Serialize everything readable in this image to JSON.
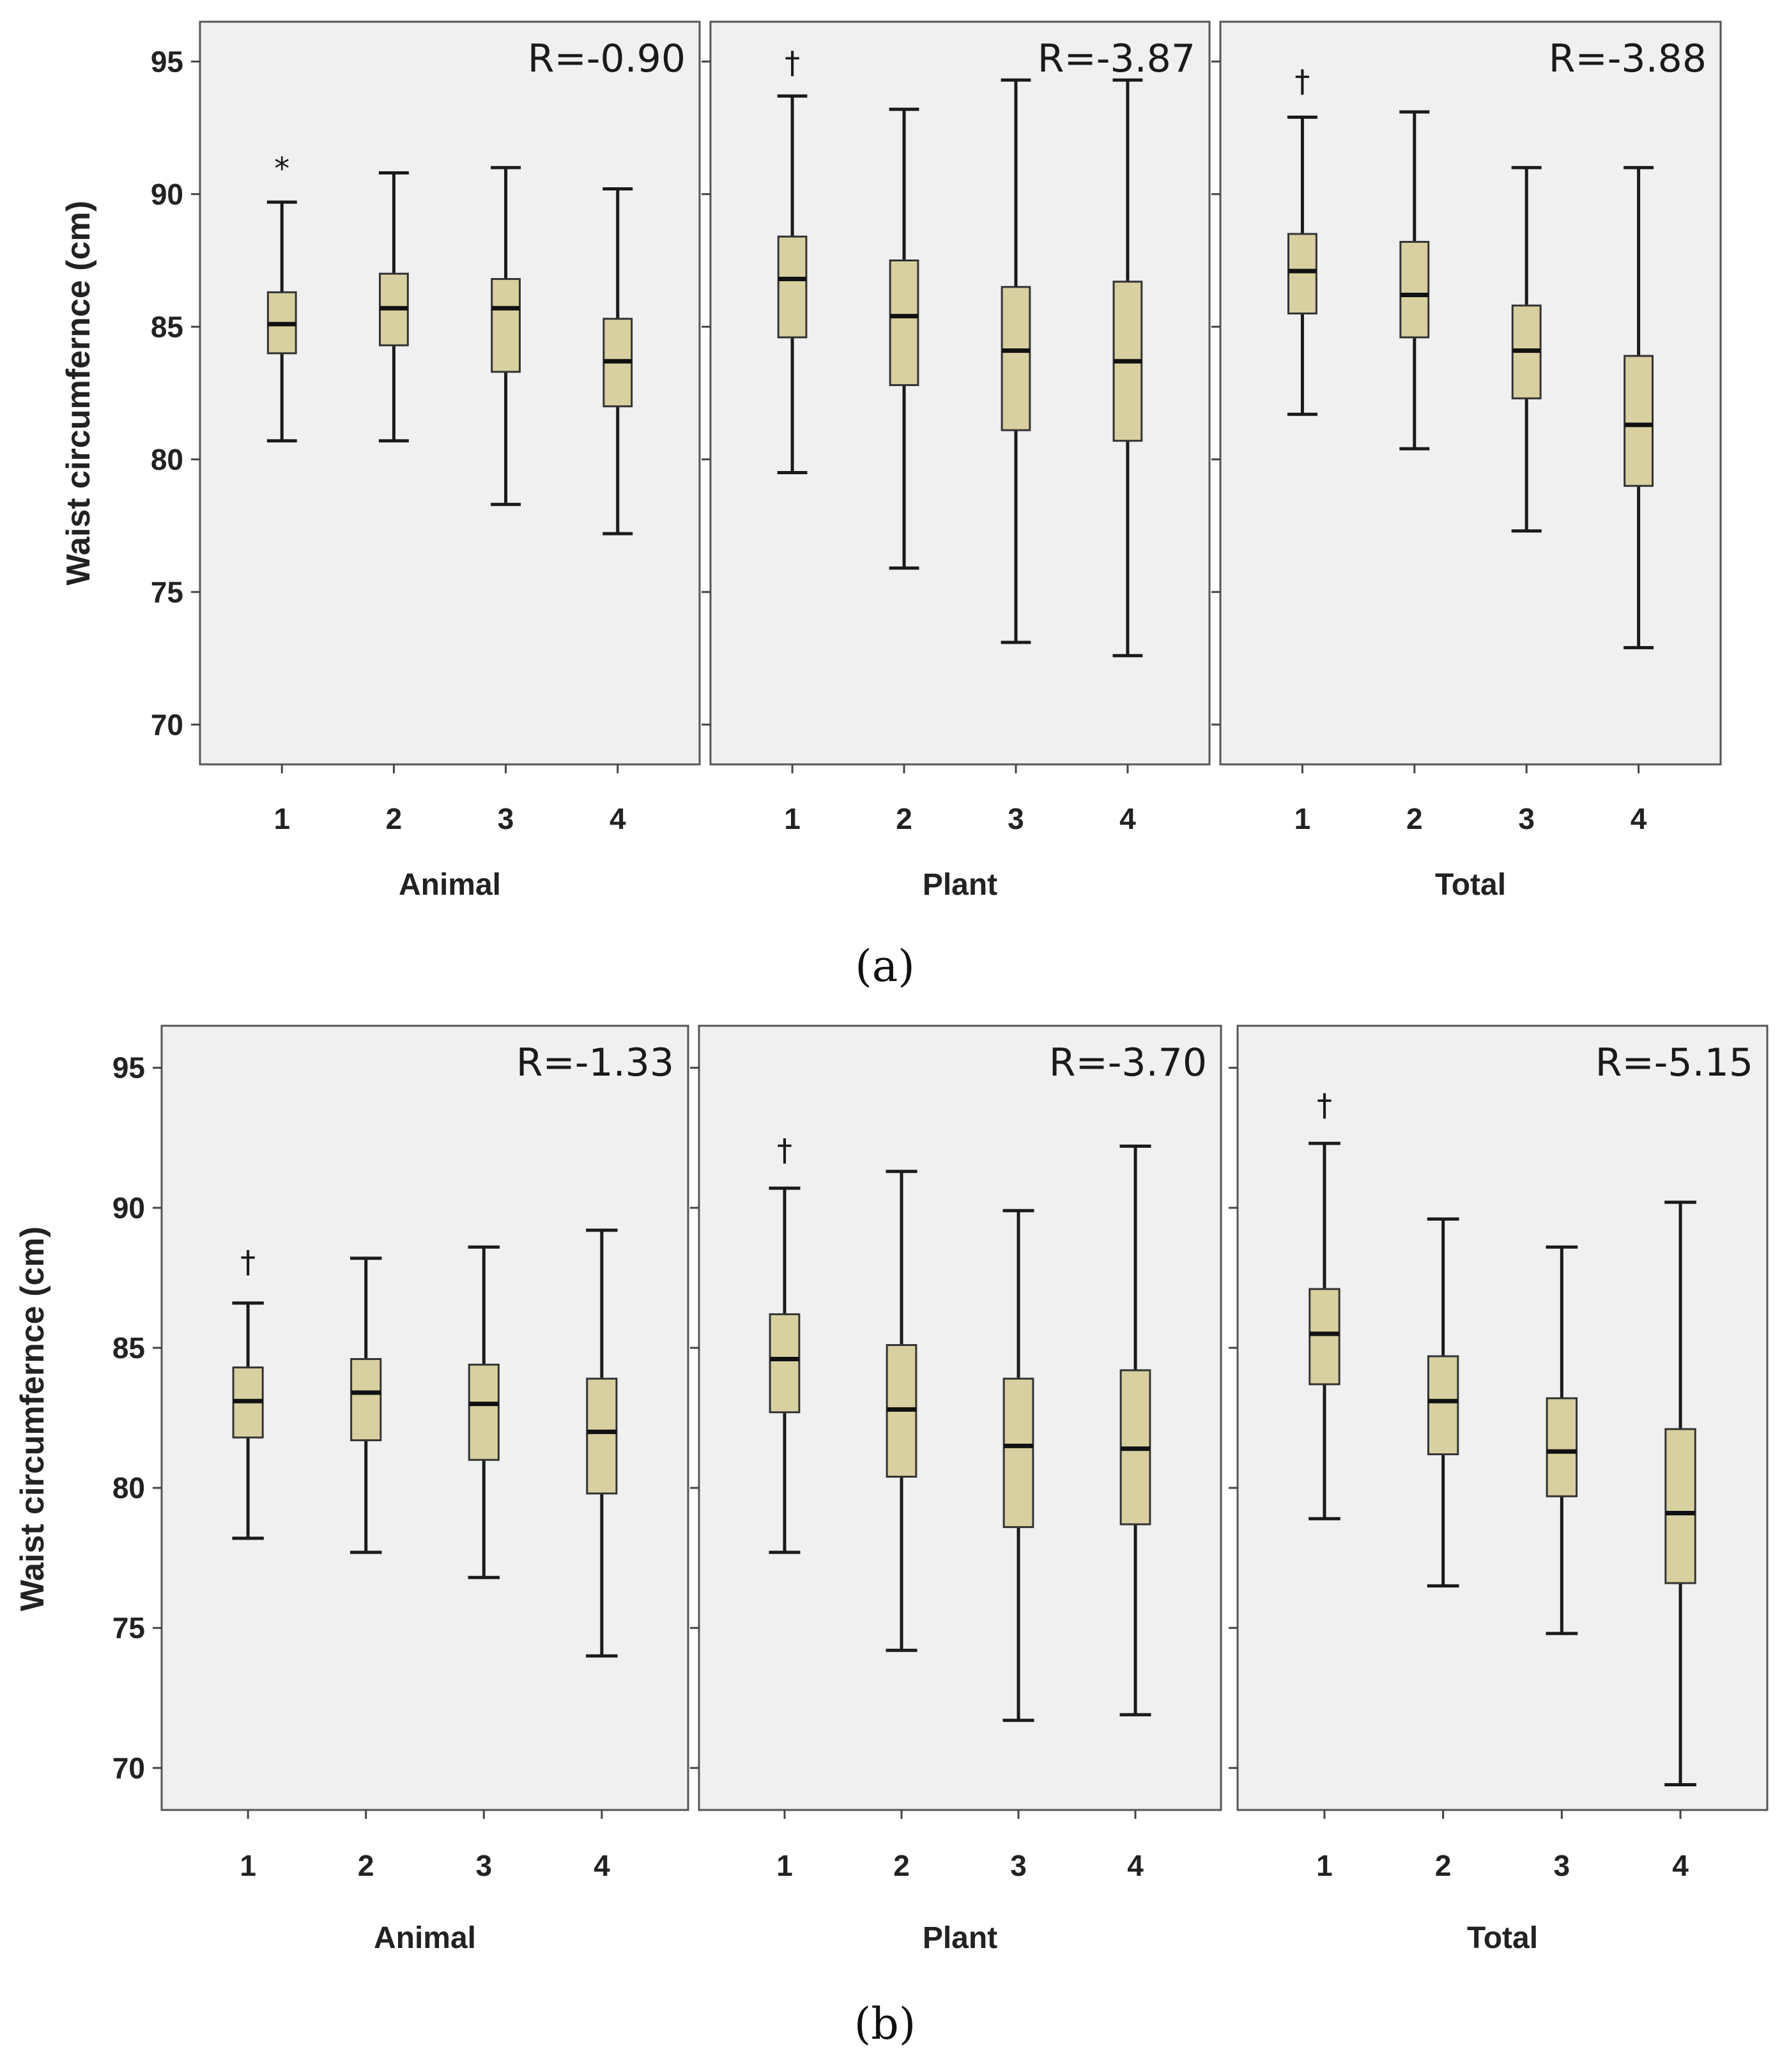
{
  "colors": {
    "panel_bg": "#f0f0f0",
    "box_fill": "#d8d0a0",
    "line": "#1a1a1a"
  },
  "chart_data": [
    {
      "type": "boxplot",
      "caption_label": "a",
      "ylabel": "Waist circumfernce (cm)",
      "ylim": [
        68.5,
        96.5
      ],
      "yticks": [
        70,
        75,
        80,
        85,
        90,
        95
      ],
      "categories": [
        "1",
        "2",
        "3",
        "4"
      ],
      "panels": [
        {
          "name": "Animal",
          "r_label": "R=-0.90",
          "boxes": [
            {
              "category": "1",
              "whisker_low": 80.7,
              "q1": 84.0,
              "median": 85.1,
              "q3": 86.3,
              "whisker_high": 89.7,
              "marker": "*",
              "marker_value": 91.0
            },
            {
              "category": "2",
              "whisker_low": 80.7,
              "q1": 84.3,
              "median": 85.7,
              "q3": 87.0,
              "whisker_high": 90.8
            },
            {
              "category": "3",
              "whisker_low": 78.3,
              "q1": 83.3,
              "median": 85.7,
              "q3": 86.8,
              "whisker_high": 91.0
            },
            {
              "category": "4",
              "whisker_low": 77.2,
              "q1": 82.0,
              "median": 83.7,
              "q3": 85.3,
              "whisker_high": 90.2
            }
          ]
        },
        {
          "name": "Plant",
          "r_label": "R=-3.87",
          "boxes": [
            {
              "category": "1",
              "whisker_low": 79.5,
              "q1": 84.6,
              "median": 86.8,
              "q3": 88.4,
              "whisker_high": 93.7,
              "marker": "†",
              "marker_value": 95.0
            },
            {
              "category": "2",
              "whisker_low": 75.9,
              "q1": 82.8,
              "median": 85.4,
              "q3": 87.5,
              "whisker_high": 93.2
            },
            {
              "category": "3",
              "whisker_low": 73.1,
              "q1": 81.1,
              "median": 84.1,
              "q3": 86.5,
              "whisker_high": 94.3
            },
            {
              "category": "4",
              "whisker_low": 72.6,
              "q1": 80.7,
              "median": 83.7,
              "q3": 86.7,
              "whisker_high": 94.3
            }
          ]
        },
        {
          "name": "Total",
          "r_label": "R=-3.88",
          "boxes": [
            {
              "category": "1",
              "whisker_low": 81.7,
              "q1": 85.5,
              "median": 87.1,
              "q3": 88.5,
              "whisker_high": 92.9,
              "marker": "†",
              "marker_value": 94.3
            },
            {
              "category": "2",
              "whisker_low": 80.4,
              "q1": 84.6,
              "median": 86.2,
              "q3": 88.2,
              "whisker_high": 93.1
            },
            {
              "category": "3",
              "whisker_low": 77.3,
              "q1": 82.3,
              "median": 84.1,
              "q3": 85.8,
              "whisker_high": 91.0
            },
            {
              "category": "4",
              "whisker_low": 72.9,
              "q1": 79.0,
              "median": 81.3,
              "q3": 83.9,
              "whisker_high": 91.0
            }
          ]
        }
      ]
    },
    {
      "type": "boxplot",
      "caption_label": "b",
      "ylabel": "Waist circumfernce (cm)",
      "ylim": [
        68.5,
        96.5
      ],
      "yticks": [
        70,
        75,
        80,
        85,
        90,
        95
      ],
      "categories": [
        "1",
        "2",
        "3",
        "4"
      ],
      "panels": [
        {
          "name": "Animal",
          "r_label": "R=-1.33",
          "boxes": [
            {
              "category": "1",
              "whisker_low": 78.2,
              "q1": 81.8,
              "median": 83.1,
              "q3": 84.3,
              "whisker_high": 86.6,
              "marker": "†",
              "marker_value": 88.1
            },
            {
              "category": "2",
              "whisker_low": 77.7,
              "q1": 81.7,
              "median": 83.4,
              "q3": 84.6,
              "whisker_high": 88.2
            },
            {
              "category": "3",
              "whisker_low": 76.8,
              "q1": 81.0,
              "median": 83.0,
              "q3": 84.4,
              "whisker_high": 88.6
            },
            {
              "category": "4",
              "whisker_low": 74.0,
              "q1": 79.8,
              "median": 82.0,
              "q3": 83.9,
              "whisker_high": 89.2
            }
          ]
        },
        {
          "name": "Plant",
          "r_label": "R=-3.70",
          "boxes": [
            {
              "category": "1",
              "whisker_low": 77.7,
              "q1": 82.7,
              "median": 84.6,
              "q3": 86.2,
              "whisker_high": 90.7,
              "marker": "†",
              "marker_value": 92.1
            },
            {
              "category": "2",
              "whisker_low": 74.2,
              "q1": 80.4,
              "median": 82.8,
              "q3": 85.1,
              "whisker_high": 91.3
            },
            {
              "category": "3",
              "whisker_low": 71.7,
              "q1": 78.6,
              "median": 81.5,
              "q3": 83.9,
              "whisker_high": 89.9
            },
            {
              "category": "4",
              "whisker_low": 71.9,
              "q1": 78.7,
              "median": 81.4,
              "q3": 84.2,
              "whisker_high": 92.2
            }
          ]
        },
        {
          "name": "Total",
          "r_label": "R=-5.15",
          "boxes": [
            {
              "category": "1",
              "whisker_low": 78.9,
              "q1": 83.7,
              "median": 85.5,
              "q3": 87.1,
              "whisker_high": 92.3,
              "marker": "†",
              "marker_value": 93.7
            },
            {
              "category": "2",
              "whisker_low": 76.5,
              "q1": 81.2,
              "median": 83.1,
              "q3": 84.7,
              "whisker_high": 89.6
            },
            {
              "category": "3",
              "whisker_low": 74.8,
              "q1": 79.7,
              "median": 81.3,
              "q3": 83.2,
              "whisker_high": 88.6
            },
            {
              "category": "4",
              "whisker_low": 69.4,
              "q1": 76.6,
              "median": 79.1,
              "q3": 82.1,
              "whisker_high": 90.2
            }
          ]
        }
      ]
    }
  ]
}
